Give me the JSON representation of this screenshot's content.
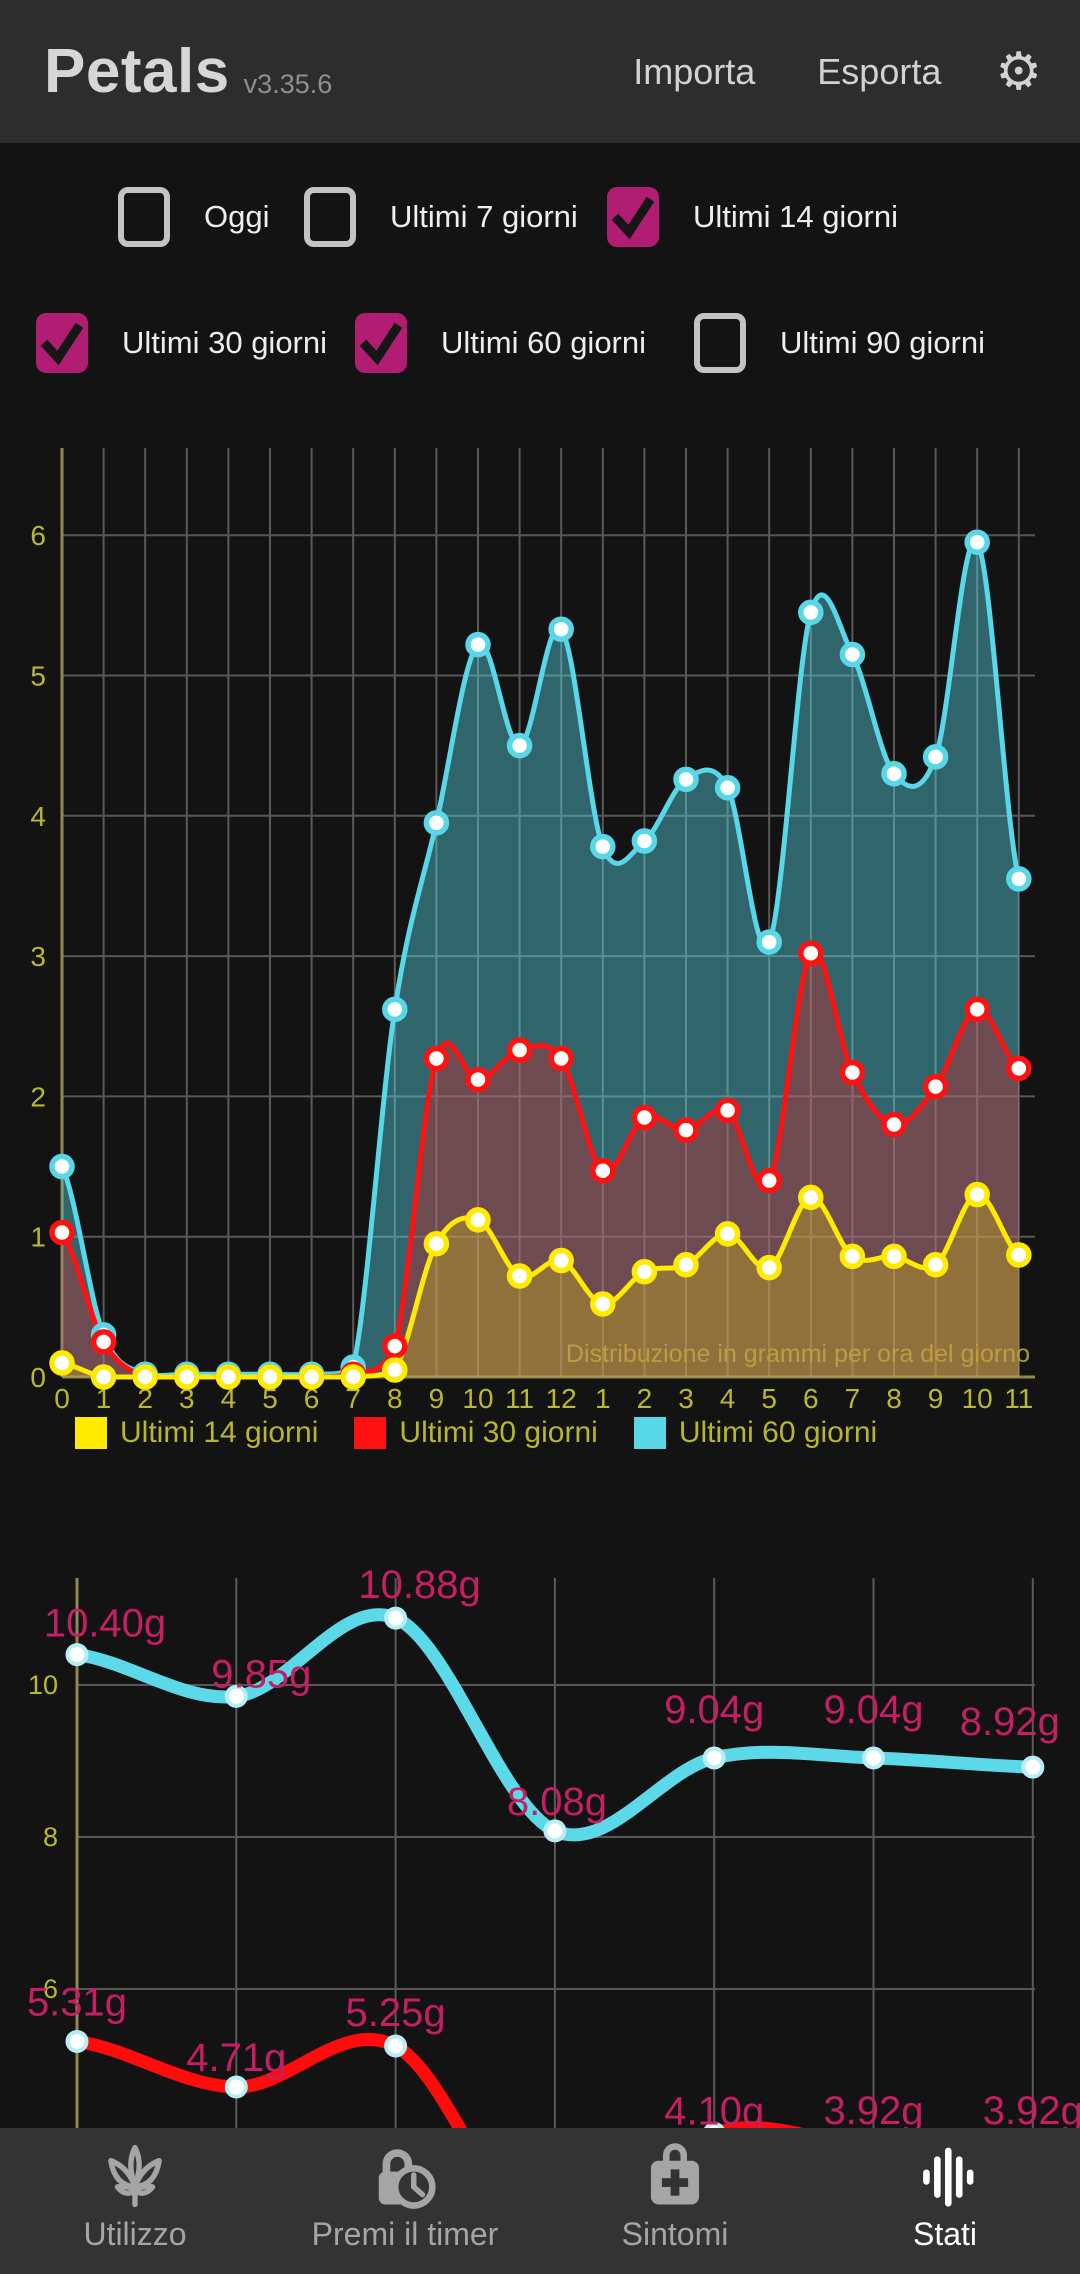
{
  "header": {
    "app_name": "Petals",
    "version": "v3.35.6",
    "import_label": "Importa",
    "export_label": "Esporta",
    "settings_icon": "gear-icon"
  },
  "filters": {
    "items": [
      {
        "label": "Oggi",
        "checked": false
      },
      {
        "label": "Ultimi 7 giorni",
        "checked": false
      },
      {
        "label": "Ultimi 14 giorni",
        "checked": true
      },
      {
        "label": "Ultimi 30 giorni",
        "checked": true
      },
      {
        "label": "Ultimi 60 giorni",
        "checked": true
      },
      {
        "label": "Ultimi 90 giorni",
        "checked": false
      }
    ]
  },
  "colors": {
    "accent_pink": "#b11d72",
    "label_magenta": "#c51f63",
    "tick_olive": "#b9b831",
    "axis_olive": "#8e8b4f",
    "grid_gray": "#5a5a5a",
    "series_yellow": "#ffeb00",
    "series_red": "#ff1111",
    "series_cyan": "#57d7e8",
    "header_bg": "#2d2d2d",
    "nav_bg": "#333333",
    "page_bg": "#131313"
  },
  "chart_data": [
    {
      "type": "area",
      "annotation": "Distribuzione in grammi per ora del giorno",
      "x_labels": [
        "0",
        "1",
        "2",
        "3",
        "4",
        "5",
        "6",
        "7",
        "8",
        "9",
        "10",
        "11",
        "12",
        "1",
        "2",
        "3",
        "4",
        "5",
        "6",
        "7",
        "8",
        "9",
        "10",
        "11"
      ],
      "ylim": [
        0,
        6.6
      ],
      "yticks": [
        0,
        1,
        2,
        3,
        4,
        5,
        6
      ],
      "grid": true,
      "legend_position": "bottom",
      "series": [
        {
          "name": "Ultimi 14 giorni",
          "color": "#ffeb00",
          "values": [
            0.1,
            0,
            0,
            0,
            0,
            0,
            0,
            0,
            0.05,
            0.95,
            1.12,
            0.72,
            0.83,
            0.52,
            0.75,
            0.8,
            1.02,
            0.78,
            1.28,
            0.86,
            0.86,
            0.8,
            1.3,
            0.87
          ]
        },
        {
          "name": "Ultimi 30 giorni",
          "color": "#ff1111",
          "values": [
            1.03,
            0.25,
            0,
            0,
            0,
            0,
            0,
            0.02,
            0.22,
            2.27,
            2.12,
            2.33,
            2.27,
            1.47,
            1.85,
            1.76,
            1.9,
            1.4,
            3.02,
            2.17,
            1.8,
            2.07,
            2.62,
            2.2
          ]
        },
        {
          "name": "Ultimi 60 giorni",
          "color": "#57d7e8",
          "values": [
            1.5,
            0.3,
            0.02,
            0.02,
            0.02,
            0.02,
            0.02,
            0.07,
            2.62,
            3.95,
            5.22,
            4.5,
            5.33,
            3.78,
            3.82,
            4.26,
            4.2,
            3.1,
            5.45,
            5.15,
            4.3,
            4.42,
            5.95,
            3.55
          ]
        }
      ]
    },
    {
      "type": "line",
      "yticks": [
        10,
        8,
        6
      ],
      "grid": true,
      "unit": "g",
      "series": [
        {
          "color": "#5cd9e9",
          "values": [
            10.4,
            9.85,
            10.88,
            8.08,
            9.04,
            9.04,
            8.92
          ],
          "point_labels": [
            "10.40g",
            "9.85g",
            "10.88g",
            "8.08g",
            "9.04g",
            "9.04g",
            "8.92g"
          ]
        },
        {
          "color": "#ff0b0b",
          "values": [
            5.31,
            4.71,
            5.25,
            null,
            4.1,
            3.92,
            3.92
          ],
          "point_labels": [
            "5.31g",
            "4.71g",
            "5.25g",
            null,
            "4.10g",
            "3.92g",
            "3.92g"
          ]
        }
      ]
    }
  ],
  "nav": {
    "items": [
      {
        "label": "Utilizzo",
        "icon": "cannabis-leaf-icon",
        "active": false
      },
      {
        "label": "Premi il timer",
        "icon": "lock-timer-icon",
        "active": false
      },
      {
        "label": "Sintomi",
        "icon": "medical-bag-icon",
        "active": false
      },
      {
        "label": "Stati",
        "icon": "equalizer-icon",
        "active": true
      }
    ]
  }
}
